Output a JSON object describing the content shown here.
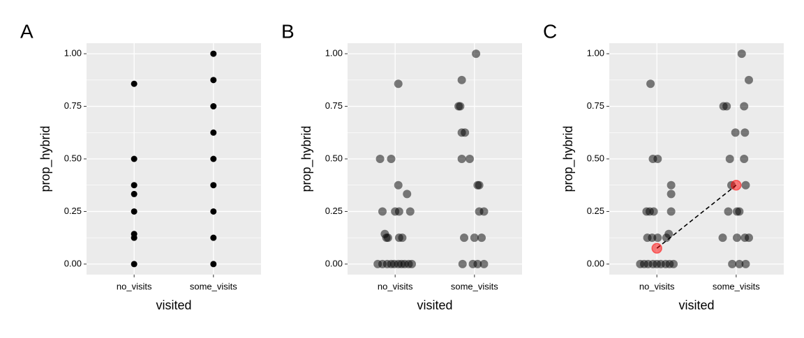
{
  "chart_data": [
    {
      "type": "scatter",
      "tag": "A",
      "xlabel": "visited",
      "ylabel": "prop_hybrid",
      "xlim": [
        0.4,
        2.6
      ],
      "xticks": [
        {
          "value": 1,
          "label": "no_visits"
        },
        {
          "value": 2,
          "label": "some_visits"
        }
      ],
      "ylim": [
        -0.05,
        1.05
      ],
      "yticks": [
        {
          "value": 0,
          "label": "0.00"
        },
        {
          "value": 0.25,
          "label": "0.25"
        },
        {
          "value": 0.5,
          "label": "0.50"
        },
        {
          "value": 0.75,
          "label": "0.75"
        },
        {
          "value": 1,
          "label": "1.00"
        }
      ],
      "minor_yticks": [
        0.125,
        0.375,
        0.625,
        0.875
      ],
      "grid": true,
      "series": [
        {
          "color": "#000000",
          "opacity": 1,
          "x": [
            1,
            1,
            1,
            1,
            1,
            1,
            1,
            1,
            2,
            2,
            2,
            2,
            2,
            2,
            2,
            2,
            2
          ],
          "values": [
            0.857,
            0.5,
            0.375,
            0.333,
            0.25,
            0.143,
            0.125,
            0,
            1,
            0.875,
            0.75,
            0.625,
            0.5,
            0.375,
            0.25,
            0.125,
            0
          ]
        }
      ]
    },
    {
      "type": "scatter",
      "tag": "B",
      "xlabel": "visited",
      "ylabel": "prop_hybrid",
      "xlim": [
        0.4,
        2.6
      ],
      "xticks": [
        {
          "value": 1,
          "label": "no_visits"
        },
        {
          "value": 2,
          "label": "some_visits"
        }
      ],
      "ylim": [
        -0.05,
        1.05
      ],
      "yticks": [
        {
          "value": 0,
          "label": "0.00"
        },
        {
          "value": 0.25,
          "label": "0.25"
        },
        {
          "value": 0.5,
          "label": "0.50"
        },
        {
          "value": 0.75,
          "label": "0.75"
        },
        {
          "value": 1,
          "label": "1.00"
        }
      ],
      "minor_yticks": [
        0.125,
        0.375,
        0.625,
        0.875
      ],
      "grid": true,
      "series": [
        {
          "color": "#000000",
          "opacity": 0.5,
          "x": [
            1.04,
            0.81,
            0.95,
            1.04,
            1.15,
            0.84,
            1.0,
            1.05,
            1.19,
            0.87,
            0.89,
            0.91,
            1.05,
            1.09,
            0.78,
            0.84,
            0.9,
            0.95,
            0.99,
            1.04,
            1.08,
            1.12,
            1.17,
            1.21,
            2.02,
            1.84,
            1.8,
            1.82,
            1.84,
            1.88,
            1.84,
            1.94,
            2.04,
            2.06,
            2.06,
            2.12,
            1.87,
            2.0,
            2.09,
            1.85,
            1.98,
            2.04,
            2.12
          ],
          "values": [
            0.857,
            0.5,
            0.5,
            0.375,
            0.333,
            0.25,
            0.25,
            0.25,
            0.25,
            0.143,
            0.125,
            0.125,
            0.125,
            0.125,
            0,
            0,
            0,
            0,
            0,
            0,
            0,
            0,
            0,
            0,
            1,
            0.875,
            0.75,
            0.75,
            0.625,
            0.625,
            0.5,
            0.5,
            0.375,
            0.375,
            0.25,
            0.25,
            0.125,
            0.125,
            0.125,
            0,
            0,
            0,
            0
          ]
        }
      ]
    },
    {
      "type": "scatter",
      "tag": "C",
      "xlabel": "visited",
      "ylabel": "prop_hybrid",
      "xlim": [
        0.4,
        2.6
      ],
      "xticks": [
        {
          "value": 1,
          "label": "no_visits"
        },
        {
          "value": 2,
          "label": "some_visits"
        }
      ],
      "ylim": [
        -0.05,
        1.05
      ],
      "yticks": [
        {
          "value": 0,
          "label": "0.00"
        },
        {
          "value": 0.25,
          "label": "0.25"
        },
        {
          "value": 0.5,
          "label": "0.50"
        },
        {
          "value": 0.75,
          "label": "0.75"
        },
        {
          "value": 1,
          "label": "1.00"
        }
      ],
      "minor_yticks": [
        0.125,
        0.375,
        0.625,
        0.875
      ],
      "grid": true,
      "series": [
        {
          "color": "#000000",
          "opacity": 0.5,
          "x": [
            0.92,
            0.95,
            1.01,
            1.18,
            1.18,
            0.87,
            0.91,
            0.96,
            1.18,
            0.88,
            0.94,
            1.01,
            1.12,
            1.15,
            0.79,
            0.84,
            0.89,
            0.95,
            1.0,
            1.05,
            1.11,
            1.16,
            1.21,
            2.07,
            2.16,
            1.84,
            1.88,
            2.1,
            1.99,
            2.11,
            1.92,
            2.1,
            1.94,
            2.12,
            1.9,
            2.01,
            2.04,
            1.83,
            2.01,
            2.11,
            2.16,
            1.95,
            2.04,
            2.12
          ],
          "values": [
            0.857,
            0.5,
            0.5,
            0.375,
            0.333,
            0.25,
            0.25,
            0.25,
            0.25,
            0.125,
            0.125,
            0.125,
            0.125,
            0.143,
            0,
            0,
            0,
            0,
            0,
            0,
            0,
            0,
            0,
            1,
            0.875,
            0.75,
            0.75,
            0.75,
            0.625,
            0.625,
            0.5,
            0.5,
            0.375,
            0.375,
            0.25,
            0.25,
            0.25,
            0.125,
            0.125,
            0.125,
            0.125,
            0,
            0,
            0
          ]
        },
        {
          "color": "#ff0000",
          "opacity": 0.5,
          "connect": "dashed",
          "x": [
            1,
            2
          ],
          "values": [
            0.075,
            0.375
          ]
        }
      ]
    }
  ]
}
